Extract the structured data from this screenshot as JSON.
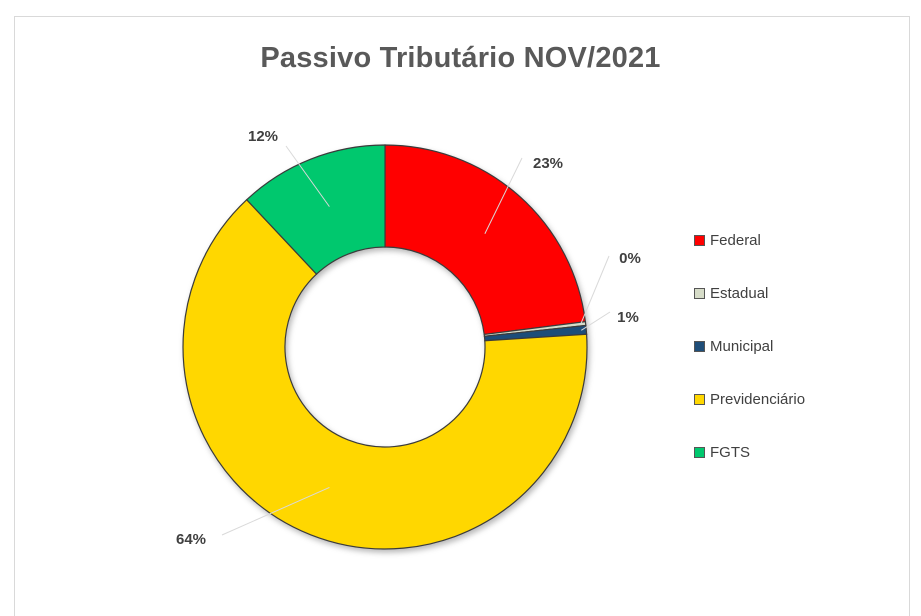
{
  "chart_data": {
    "type": "pie",
    "title": "Passivo Tributário NOV/2021",
    "categories": [
      "Federal",
      "Estadual",
      "Municipal",
      "Previdenciário",
      "FGTS"
    ],
    "values": [
      23,
      0.3,
      0.7,
      64,
      12
    ],
    "data_labels": [
      "23%",
      "0%",
      "1%",
      "64%",
      "12%"
    ],
    "colors": [
      "#ff0000",
      "#d6dcc8",
      "#1f4e79",
      "#ffd700",
      "#00c86e"
    ],
    "style": "doughnut",
    "legend": {
      "placement": "right"
    }
  }
}
